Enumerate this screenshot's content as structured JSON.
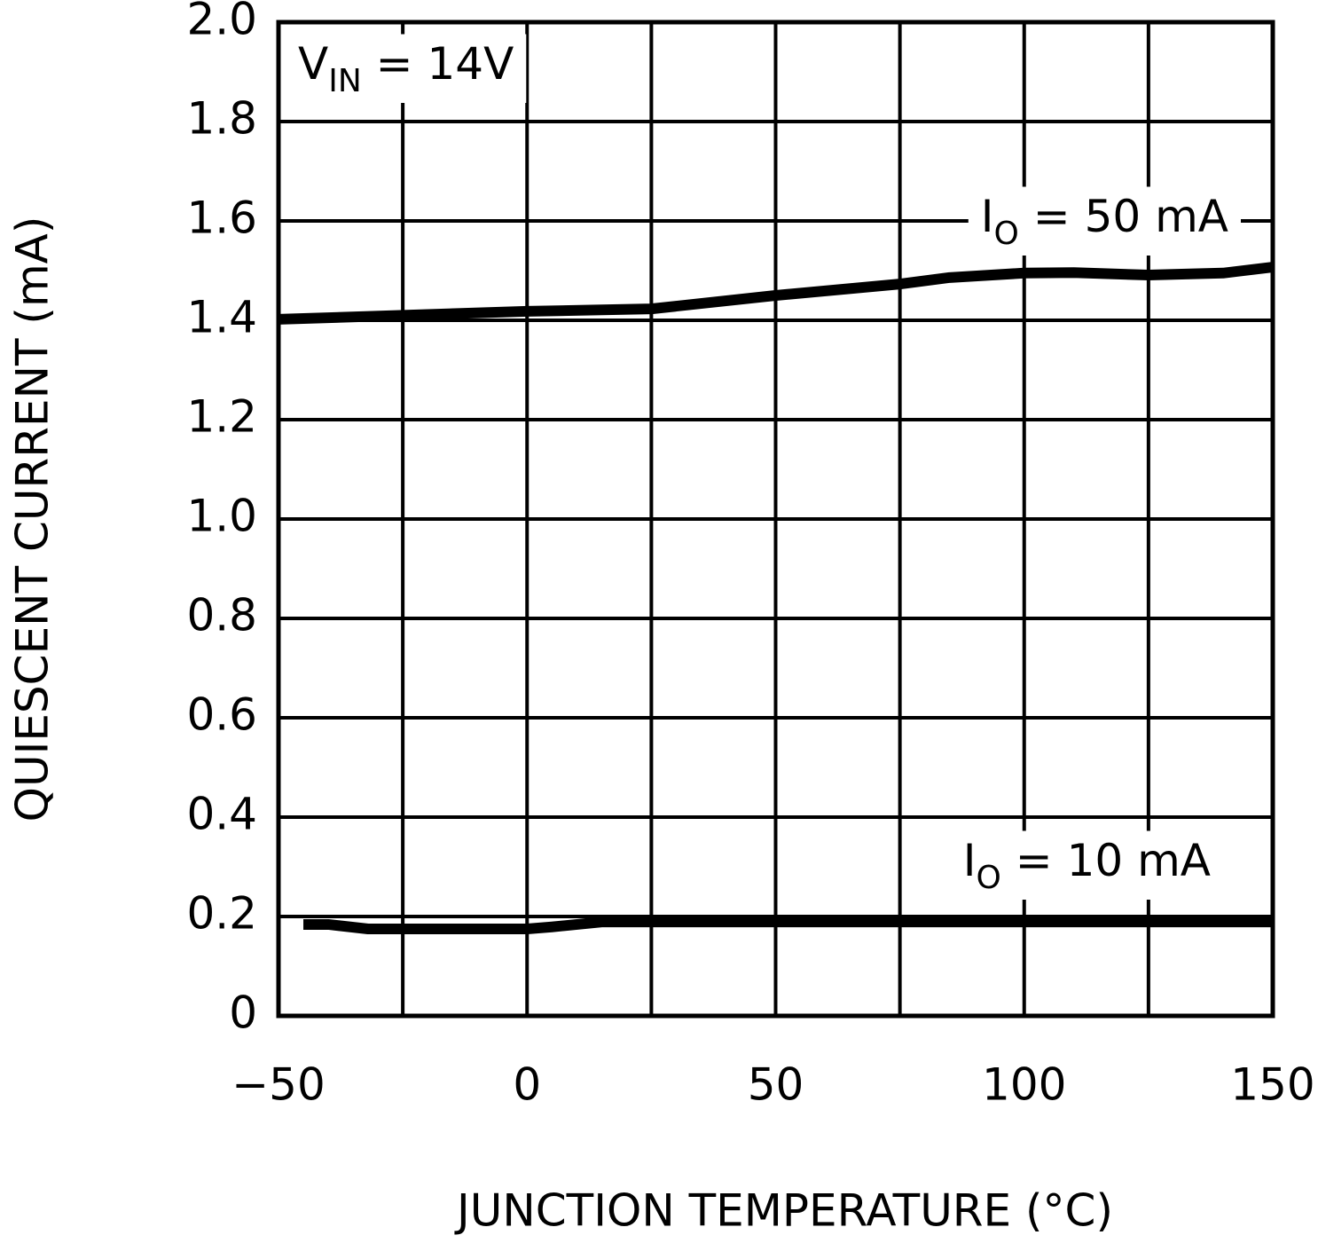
{
  "chart_data": {
    "type": "line",
    "x_label": "JUNCTION TEMPERATURE (°C)",
    "y_label": "QUIESCENT CURRENT (mA)",
    "xlim": [
      -50,
      150
    ],
    "ylim": [
      0,
      2.0
    ],
    "xticks": [
      {
        "value": -50,
        "label": "−50"
      },
      0,
      50,
      100,
      150
    ],
    "xgrid": [
      -50,
      -25,
      0,
      25,
      50,
      75,
      100,
      125,
      150
    ],
    "yticks": [
      0,
      0.2,
      0.4,
      0.6,
      0.8,
      {
        "value": 1.0,
        "label": "1.0"
      },
      1.2,
      1.4,
      1.6,
      1.8,
      {
        "value": 2.0,
        "label": "2.0"
      }
    ],
    "grid": true,
    "color": "#000000",
    "series": [
      {
        "name": "I_O = 50 mA",
        "label": {
          "main": "I",
          "sub": "O",
          "tail": " = 50 mA"
        },
        "color": "#000000",
        "x": [
          -50,
          0,
          25,
          50,
          75,
          85,
          100,
          110,
          125,
          140,
          150
        ],
        "values": [
          1.402,
          1.418,
          1.423,
          1.45,
          1.473,
          1.486,
          1.495,
          1.496,
          1.491,
          1.495,
          1.507
        ]
      },
      {
        "name": "I_O = 10 mA",
        "label": {
          "main": "I",
          "sub": "O",
          "tail": " = 10 mA"
        },
        "color": "#000000",
        "x": [
          -45,
          -40,
          -32,
          0,
          5,
          15,
          150
        ],
        "values": [
          0.184,
          0.184,
          0.175,
          0.175,
          0.179,
          0.189,
          0.189
        ]
      }
    ],
    "annotation": {
      "main": "V",
      "sub": "IN",
      "tail": " = 14V"
    }
  }
}
